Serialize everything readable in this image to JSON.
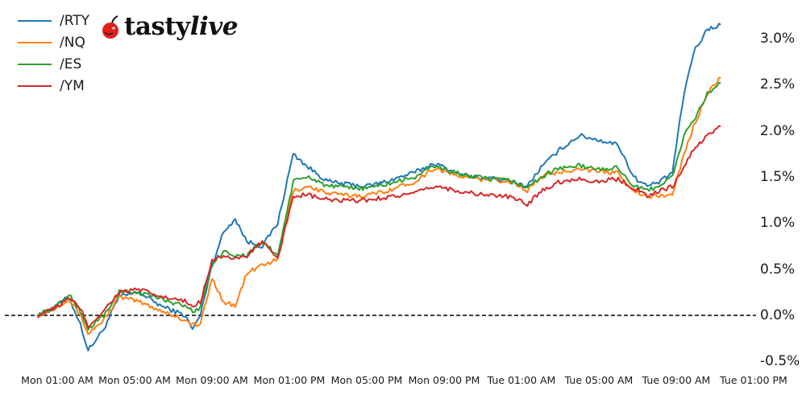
{
  "chart_data": {
    "type": "line",
    "title": "",
    "xlabel": "",
    "ylabel": "",
    "brand": "tastylive",
    "legend_position": "upper-left",
    "grid": false,
    "zero_line": {
      "value": 0.0,
      "style": "dashed",
      "color": "#000000"
    },
    "ylim": [
      -0.55,
      3.3
    ],
    "yticks": [
      "3.0%",
      "2.5%",
      "2.0%",
      "1.5%",
      "1.0%",
      "0.5%",
      "0.0%",
      "-0.5%"
    ],
    "ytick_values": [
      3.0,
      2.5,
      2.0,
      1.5,
      1.0,
      0.5,
      0.0,
      -0.5
    ],
    "xticks": [
      "Mon 01:00 AM",
      "Mon 05:00 AM",
      "Mon 09:00 AM",
      "Mon 01:00 PM",
      "Mon 05:00 PM",
      "Mon 09:00 PM",
      "Tue 01:00 AM",
      "Tue 05:00 AM",
      "Tue 09:00 AM",
      "Tue 01:00 PM"
    ],
    "x_hours": [
      0,
      1,
      2,
      3,
      4,
      5,
      6,
      7,
      8,
      9,
      10,
      11,
      12,
      13,
      14,
      15,
      16,
      17,
      18,
      19,
      20,
      21,
      22,
      23,
      24,
      25,
      26,
      27,
      28,
      29,
      30,
      31,
      32,
      33,
      34,
      35,
      35.3
    ],
    "x_label_note": "x_hours = hours since Mon 00:00 AM",
    "series": [
      {
        "name": "/RTY",
        "color": "#1f77b4",
        "values": [
          0.0,
          0.08,
          0.2,
          -0.1,
          -0.38,
          -0.15,
          0.2,
          0.25,
          0.1,
          0.0,
          -0.15,
          0.0,
          0.55,
          0.9,
          1.05,
          0.8,
          0.75,
          1.0,
          1.75,
          1.6,
          1.45,
          1.42,
          1.4,
          1.45,
          1.55,
          1.65,
          1.55,
          1.5,
          1.48,
          1.45,
          1.4,
          1.6,
          1.8,
          1.95,
          1.9,
          1.85,
          1.5,
          1.4,
          1.45,
          1.55,
          2.4,
          2.85,
          3.1,
          3.15
        ]
      },
      {
        "name": "/NQ",
        "color": "#ff7f0e",
        "values": [
          0.0,
          0.07,
          0.18,
          0.0,
          -0.2,
          -0.05,
          0.2,
          0.15,
          0.05,
          -0.05,
          -0.1,
          -0.1,
          0.4,
          0.15,
          0.1,
          0.45,
          0.55,
          0.6,
          1.35,
          1.4,
          1.32,
          1.3,
          1.3,
          1.35,
          1.45,
          1.6,
          1.52,
          1.48,
          1.47,
          1.45,
          1.35,
          1.5,
          1.55,
          1.6,
          1.55,
          1.55,
          1.35,
          1.28,
          1.3,
          1.3,
          1.75,
          2.05,
          2.4,
          2.58
        ]
      },
      {
        "name": "/ES",
        "color": "#2ca02c",
        "values": [
          0.0,
          0.08,
          0.22,
          0.05,
          -0.15,
          0.0,
          0.25,
          0.25,
          0.18,
          0.1,
          0.05,
          0.08,
          0.55,
          0.7,
          0.65,
          0.65,
          0.8,
          0.65,
          1.45,
          1.5,
          1.4,
          1.38,
          1.38,
          1.42,
          1.5,
          1.62,
          1.55,
          1.5,
          1.47,
          1.46,
          1.38,
          1.5,
          1.6,
          1.62,
          1.58,
          1.6,
          1.4,
          1.35,
          1.42,
          1.5,
          1.95,
          2.1,
          2.4,
          2.52
        ]
      },
      {
        "name": "/YM",
        "color": "#d62728",
        "values": [
          0.0,
          0.07,
          0.18,
          0.08,
          -0.12,
          0.05,
          0.25,
          0.28,
          0.2,
          0.15,
          0.1,
          0.15,
          0.6,
          0.65,
          0.6,
          0.65,
          0.8,
          0.6,
          1.3,
          1.3,
          1.25,
          1.24,
          1.25,
          1.28,
          1.32,
          1.4,
          1.36,
          1.32,
          1.3,
          1.28,
          1.2,
          1.35,
          1.45,
          1.48,
          1.45,
          1.48,
          1.38,
          1.3,
          1.35,
          1.4,
          1.6,
          1.8,
          1.95,
          2.05
        ]
      }
    ],
    "x_sample_hours": [
      0,
      0.8,
      1.6,
      2.2,
      2.6,
      3.4,
      4.2,
      5.2,
      6.4,
      7.6,
      8.0,
      8.4,
      9.0,
      9.6,
      10.2,
      10.8,
      11.6,
      12.4,
      13.2,
      14.0,
      15.0,
      16.0,
      17.0,
      18.0,
      19.5,
      20.5,
      21.5,
      22.5,
      23.5,
      24.5,
      25.3,
      26.0,
      27.0,
      28.0,
      29.0,
      30.0,
      30.8,
      31.5,
      32.2,
      32.8,
      33.4,
      33.9,
      34.6,
      35.3
    ]
  },
  "legend": [
    {
      "label": "/RTY",
      "color": "#1f77b4"
    },
    {
      "label": "/NQ",
      "color": "#ff7f0e"
    },
    {
      "label": "/ES",
      "color": "#2ca02c"
    },
    {
      "label": "/YM",
      "color": "#d62728"
    }
  ],
  "logo": {
    "text_bold": "tasty",
    "text_italic": "live",
    "icon": "cherry-icon",
    "icon_color": "#e0201b"
  }
}
